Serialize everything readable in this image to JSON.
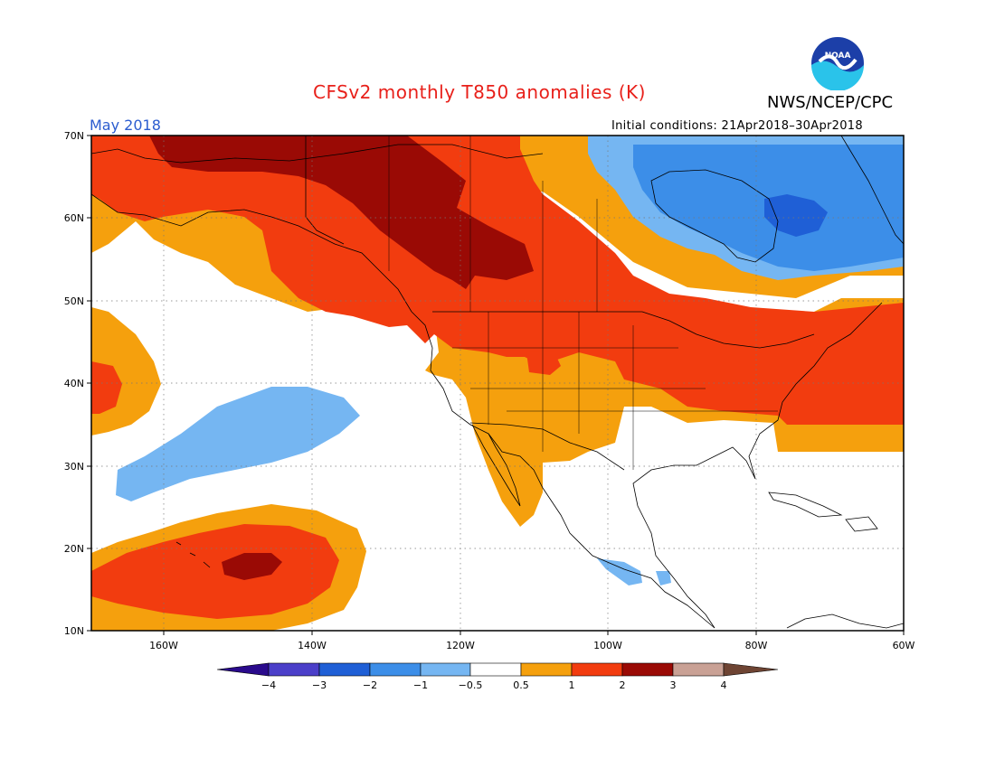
{
  "title": "CFSv2 monthly T850 anomalies (K)",
  "agency": "NWS/NCEP/CPC",
  "logo_text": "NOAA",
  "month": "May 2018",
  "initial_conditions": "Initial conditions: 21Apr2018–30Apr2018",
  "map": {
    "lat_labels": [
      "70N",
      "60N",
      "50N",
      "40N",
      "30N",
      "20N",
      "10N"
    ],
    "lon_labels": [
      "160W",
      "140W",
      "120W",
      "100W",
      "80W",
      "60W"
    ],
    "region": "North America and eastern Pacific, 10N–70N, ~170W–60W"
  },
  "colorbar": {
    "labels": [
      "−4",
      "−3",
      "−2",
      "−1",
      "−0.5",
      "0.5",
      "1",
      "2",
      "3",
      "4"
    ],
    "colors": {
      "lt_-4": "#2a0a8c",
      "-4_-3": "#4b3fc9",
      "-3_-2": "#1f5fd6",
      "-2_-1": "#3c8ee8",
      "-1_-0.5": "#75b6f2",
      "-0.5_0.5": "#ffffff",
      "0.5_1": "#f5a00d",
      "1_2": "#f23c0f",
      "2_3": "#9a0a05",
      "3_4": "#c9a195",
      "gt_4": "#6e4433"
    }
  }
}
